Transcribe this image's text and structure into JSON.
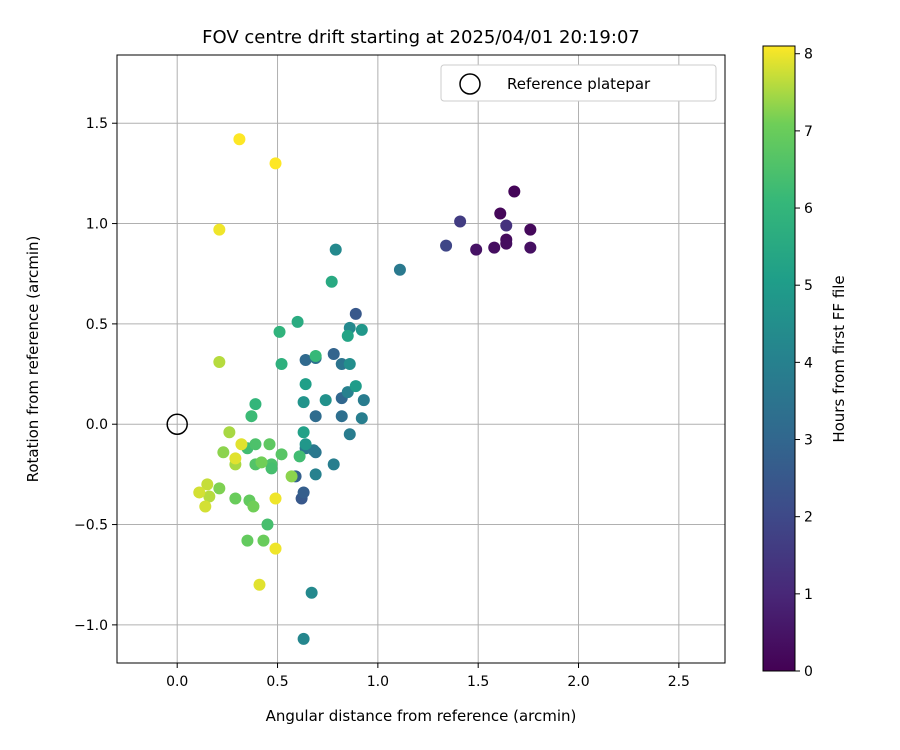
{
  "chart_data": {
    "type": "scatter",
    "title": "FOV centre drift starting at 2025/04/01 20:19:07",
    "xlabel": "Angular distance from reference (arcmin)",
    "ylabel": "Rotation from reference (arcmin)",
    "xlim": [
      -0.3,
      2.73
    ],
    "ylim": [
      -1.19,
      1.84
    ],
    "xticks": [
      "0.0",
      "0.5",
      "1.0",
      "1.5",
      "2.0",
      "2.5"
    ],
    "xtick_values": [
      0,
      0.5,
      1.0,
      1.5,
      2.0,
      2.5
    ],
    "yticks": [
      "−1.0",
      "−0.5",
      "0.0",
      "0.5",
      "1.0",
      "1.5"
    ],
    "ytick_values": [
      -1.0,
      -0.5,
      0.0,
      0.5,
      1.0,
      1.5
    ],
    "grid": true,
    "colormap": "viridis",
    "colorbar": {
      "label": "Hours from first FF file",
      "range": [
        0,
        8.1
      ],
      "ticks": [
        "0",
        "1",
        "2",
        "3",
        "4",
        "5",
        "6",
        "7",
        "8"
      ],
      "tick_values": [
        0,
        1,
        2,
        3,
        4,
        5,
        6,
        7,
        8
      ]
    },
    "legend": {
      "placement": "top-right",
      "label": "Reference platepar"
    },
    "reference_point": {
      "x": 0.0,
      "y": 0.0
    },
    "points": [
      {
        "x": 1.68,
        "y": 1.16,
        "h": 0.1
      },
      {
        "x": 1.61,
        "y": 1.05,
        "h": 0.15
      },
      {
        "x": 1.76,
        "y": 0.97,
        "h": 0.2
      },
      {
        "x": 1.64,
        "y": 0.92,
        "h": 0.25
      },
      {
        "x": 1.64,
        "y": 0.9,
        "h": 0.3
      },
      {
        "x": 1.58,
        "y": 0.88,
        "h": 0.35
      },
      {
        "x": 1.76,
        "y": 0.88,
        "h": 0.4
      },
      {
        "x": 1.49,
        "y": 0.87,
        "h": 0.45
      },
      {
        "x": 1.64,
        "y": 0.99,
        "h": 1.3
      },
      {
        "x": 1.41,
        "y": 1.01,
        "h": 1.6
      },
      {
        "x": 1.34,
        "y": 0.89,
        "h": 1.9
      },
      {
        "x": 0.89,
        "y": 0.55,
        "h": 2.5
      },
      {
        "x": 0.62,
        "y": -0.37,
        "h": 2.5
      },
      {
        "x": 0.63,
        "y": -0.34,
        "h": 2.7
      },
      {
        "x": 0.59,
        "y": -0.26,
        "h": 2.8
      },
      {
        "x": 0.78,
        "y": 0.35,
        "h": 2.9
      },
      {
        "x": 0.82,
        "y": 0.13,
        "h": 3.0
      },
      {
        "x": 0.64,
        "y": 0.32,
        "h": 3.1
      },
      {
        "x": 0.69,
        "y": 0.04,
        "h": 3.2
      },
      {
        "x": 0.82,
        "y": 0.04,
        "h": 3.3
      },
      {
        "x": 0.69,
        "y": 0.33,
        "h": 3.4
      },
      {
        "x": 0.82,
        "y": 0.3,
        "h": 3.5
      },
      {
        "x": 0.64,
        "y": -0.12,
        "h": 3.6
      },
      {
        "x": 0.69,
        "y": -0.14,
        "h": 3.6
      },
      {
        "x": 0.68,
        "y": -0.13,
        "h": 3.7
      },
      {
        "x": 1.11,
        "y": 0.77,
        "h": 3.7
      },
      {
        "x": 0.86,
        "y": -0.05,
        "h": 3.8
      },
      {
        "x": 0.93,
        "y": 0.12,
        "h": 3.8
      },
      {
        "x": 0.92,
        "y": 0.03,
        "h": 3.9
      },
      {
        "x": 0.78,
        "y": -0.2,
        "h": 3.9
      },
      {
        "x": 0.69,
        "y": -0.25,
        "h": 4.0
      },
      {
        "x": 0.85,
        "y": 0.16,
        "h": 4.0
      },
      {
        "x": 0.63,
        "y": -1.07,
        "h": 4.2
      },
      {
        "x": 0.67,
        "y": -0.84,
        "h": 4.3
      },
      {
        "x": 0.79,
        "y": 0.87,
        "h": 4.3
      },
      {
        "x": 0.86,
        "y": 0.48,
        "h": 4.3
      },
      {
        "x": 0.86,
        "y": 0.3,
        "h": 4.5
      },
      {
        "x": 0.74,
        "y": 0.12,
        "h": 4.6
      },
      {
        "x": 0.63,
        "y": 0.11,
        "h": 4.7
      },
      {
        "x": 0.92,
        "y": 0.47,
        "h": 4.8
      },
      {
        "x": 0.64,
        "y": -0.1,
        "h": 4.8
      },
      {
        "x": 0.89,
        "y": 0.19,
        "h": 5.0
      },
      {
        "x": 0.64,
        "y": 0.2,
        "h": 5.1
      },
      {
        "x": 0.85,
        "y": 0.44,
        "h": 5.3
      },
      {
        "x": 0.63,
        "y": -0.04,
        "h": 5.2
      },
      {
        "x": 0.77,
        "y": 0.71,
        "h": 5.5
      },
      {
        "x": 0.6,
        "y": 0.51,
        "h": 5.6
      },
      {
        "x": 0.52,
        "y": 0.3,
        "h": 5.8
      },
      {
        "x": 0.51,
        "y": 0.46,
        "h": 5.9
      },
      {
        "x": 0.69,
        "y": 0.34,
        "h": 6.1
      },
      {
        "x": 0.39,
        "y": 0.1,
        "h": 6.0
      },
      {
        "x": 0.37,
        "y": 0.04,
        "h": 6.2
      },
      {
        "x": 0.61,
        "y": -0.16,
        "h": 6.3
      },
      {
        "x": 0.45,
        "y": -0.5,
        "h": 6.4
      },
      {
        "x": 0.35,
        "y": -0.12,
        "h": 6.3
      },
      {
        "x": 0.39,
        "y": -0.1,
        "h": 6.5
      },
      {
        "x": 0.47,
        "y": -0.2,
        "h": 6.5
      },
      {
        "x": 0.39,
        "y": -0.2,
        "h": 6.6
      },
      {
        "x": 0.47,
        "y": -0.22,
        "h": 6.4
      },
      {
        "x": 0.52,
        "y": -0.15,
        "h": 6.7
      },
      {
        "x": 0.46,
        "y": -0.1,
        "h": 6.8
      },
      {
        "x": 0.35,
        "y": -0.58,
        "h": 6.9
      },
      {
        "x": 0.43,
        "y": -0.58,
        "h": 7.0
      },
      {
        "x": 0.36,
        "y": -0.38,
        "h": 6.9
      },
      {
        "x": 0.29,
        "y": -0.37,
        "h": 7.0
      },
      {
        "x": 0.38,
        "y": -0.41,
        "h": 7.1
      },
      {
        "x": 0.21,
        "y": -0.32,
        "h": 7.2
      },
      {
        "x": 0.23,
        "y": -0.14,
        "h": 7.3
      },
      {
        "x": 0.42,
        "y": -0.19,
        "h": 7.1
      },
      {
        "x": 0.57,
        "y": -0.26,
        "h": 7.3
      },
      {
        "x": 0.29,
        "y": -0.2,
        "h": 7.5
      },
      {
        "x": 0.26,
        "y": -0.04,
        "h": 7.5
      },
      {
        "x": 0.21,
        "y": 0.31,
        "h": 7.6
      },
      {
        "x": 0.16,
        "y": -0.36,
        "h": 7.6
      },
      {
        "x": 0.15,
        "y": -0.3,
        "h": 7.7
      },
      {
        "x": 0.11,
        "y": -0.34,
        "h": 7.8
      },
      {
        "x": 0.14,
        "y": -0.41,
        "h": 7.8
      },
      {
        "x": 0.29,
        "y": -0.17,
        "h": 7.9
      },
      {
        "x": 0.32,
        "y": -0.1,
        "h": 7.9
      },
      {
        "x": 0.41,
        "y": -0.8,
        "h": 7.9
      },
      {
        "x": 0.49,
        "y": -0.62,
        "h": 8.0
      },
      {
        "x": 0.49,
        "y": -0.37,
        "h": 8.0
      },
      {
        "x": 0.21,
        "y": 0.97,
        "h": 8.0
      },
      {
        "x": 0.31,
        "y": 1.42,
        "h": 8.1
      },
      {
        "x": 0.49,
        "y": 1.3,
        "h": 8.1
      }
    ]
  }
}
